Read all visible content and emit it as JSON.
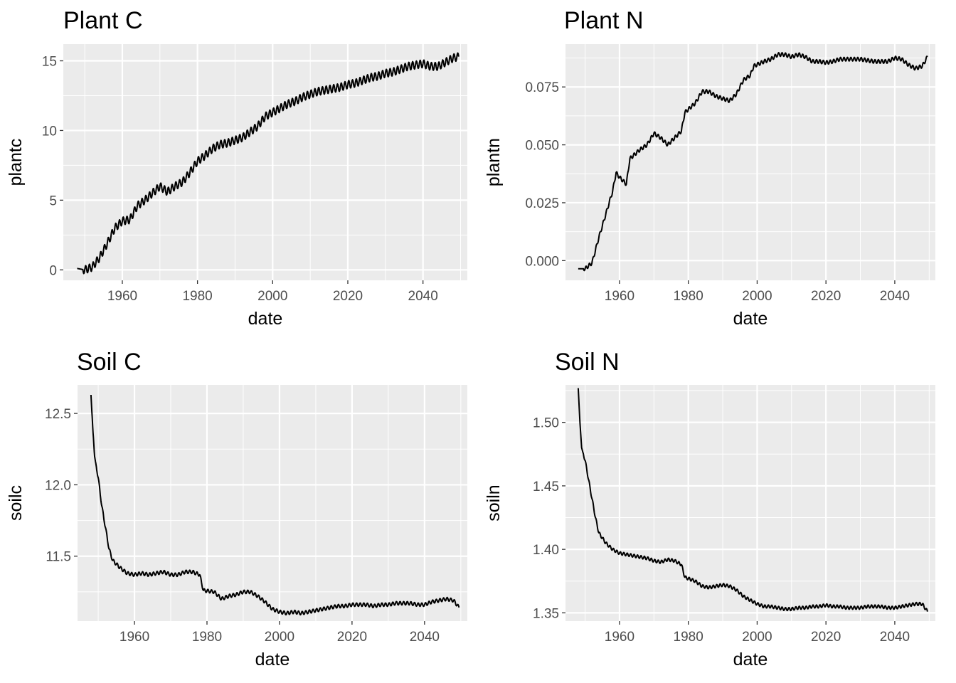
{
  "chart_data": [
    {
      "type": "line",
      "title": "Plant C",
      "xlabel": "date",
      "ylabel": "plantc",
      "xlim": [
        1944.3,
        2051.8
      ],
      "ylim": [
        -0.75,
        16.2
      ],
      "xticks": [
        1960,
        1980,
        2000,
        2020,
        2040
      ],
      "yticks": [
        0,
        5,
        10,
        15
      ],
      "ytick_labels": [
        "0",
        "5",
        "10",
        "15"
      ],
      "grid": true,
      "seasonal_amplitude": 0.28,
      "series": [
        {
          "values": [
            [
              1948,
              0.1
            ],
            [
              1950,
              0.0
            ],
            [
              1952,
              0.2
            ],
            [
              1954,
              0.9
            ],
            [
              1956,
              1.9
            ],
            [
              1958,
              3.0
            ],
            [
              1960,
              3.5
            ],
            [
              1962,
              3.6
            ],
            [
              1964,
              4.6
            ],
            [
              1966,
              5.0
            ],
            [
              1968,
              5.5
            ],
            [
              1970,
              6.0
            ],
            [
              1972,
              5.6
            ],
            [
              1974,
              6.0
            ],
            [
              1976,
              6.3
            ],
            [
              1978,
              7.0
            ],
            [
              1980,
              7.8
            ],
            [
              1982,
              8.2
            ],
            [
              1984,
              8.7
            ],
            [
              1986,
              9.0
            ],
            [
              1988,
              9.1
            ],
            [
              1990,
              9.3
            ],
            [
              1992,
              9.5
            ],
            [
              1994,
              9.9
            ],
            [
              1996,
              10.3
            ],
            [
              1998,
              11.0
            ],
            [
              2000,
              11.3
            ],
            [
              2002,
              11.6
            ],
            [
              2004,
              11.9
            ],
            [
              2006,
              12.1
            ],
            [
              2008,
              12.4
            ],
            [
              2010,
              12.6
            ],
            [
              2012,
              12.8
            ],
            [
              2014,
              12.9
            ],
            [
              2016,
              13.0
            ],
            [
              2018,
              13.1
            ],
            [
              2020,
              13.3
            ],
            [
              2022,
              13.4
            ],
            [
              2024,
              13.6
            ],
            [
              2026,
              13.8
            ],
            [
              2028,
              13.9
            ],
            [
              2030,
              14.1
            ],
            [
              2032,
              14.2
            ],
            [
              2034,
              14.4
            ],
            [
              2036,
              14.6
            ],
            [
              2038,
              14.7
            ],
            [
              2040,
              14.8
            ],
            [
              2042,
              14.6
            ],
            [
              2044,
              14.6
            ],
            [
              2046,
              14.9
            ],
            [
              2048,
              15.2
            ],
            [
              2049.5,
              15.3
            ]
          ]
        }
      ]
    },
    {
      "type": "line",
      "title": "Plant N",
      "xlabel": "date",
      "ylabel": "plantn",
      "xlim": [
        1944.3,
        2051.8
      ],
      "ylim": [
        -0.0085,
        0.0935
      ],
      "xticks": [
        1960,
        1980,
        2000,
        2020,
        2040
      ],
      "yticks": [
        0,
        0.025,
        0.05,
        0.075
      ],
      "ytick_labels": [
        "0.000",
        "0.025",
        "0.050",
        "0.075"
      ],
      "grid": true,
      "seasonal_amplitude": 0.0008,
      "series": [
        {
          "values": [
            [
              1948,
              -0.0035
            ],
            [
              1950,
              -0.0035
            ],
            [
              1952,
              -0.001
            ],
            [
              1954,
              0.01
            ],
            [
              1956,
              0.02
            ],
            [
              1958,
              0.03
            ],
            [
              1959,
              0.038
            ],
            [
              1960,
              0.036
            ],
            [
              1962,
              0.033
            ],
            [
              1963,
              0.044
            ],
            [
              1966,
              0.048
            ],
            [
              1968,
              0.05
            ],
            [
              1970,
              0.055
            ],
            [
              1972,
              0.053
            ],
            [
              1974,
              0.05
            ],
            [
              1976,
              0.053
            ],
            [
              1978,
              0.056
            ],
            [
              1979,
              0.064
            ],
            [
              1982,
              0.068
            ],
            [
              1984,
              0.073
            ],
            [
              1986,
              0.073
            ],
            [
              1988,
              0.071
            ],
            [
              1990,
              0.07
            ],
            [
              1992,
              0.069
            ],
            [
              1994,
              0.072
            ],
            [
              1996,
              0.078
            ],
            [
              1998,
              0.08
            ],
            [
              1999,
              0.084
            ],
            [
              2002,
              0.086
            ],
            [
              2004,
              0.087
            ],
            [
              2006,
              0.089
            ],
            [
              2008,
              0.089
            ],
            [
              2010,
              0.088
            ],
            [
              2012,
              0.089
            ],
            [
              2014,
              0.088
            ],
            [
              2016,
              0.086
            ],
            [
              2018,
              0.086
            ],
            [
              2020,
              0.0855
            ],
            [
              2022,
              0.086
            ],
            [
              2024,
              0.087
            ],
            [
              2026,
              0.087
            ],
            [
              2028,
              0.087
            ],
            [
              2030,
              0.087
            ],
            [
              2032,
              0.0865
            ],
            [
              2034,
              0.086
            ],
            [
              2036,
              0.086
            ],
            [
              2038,
              0.086
            ],
            [
              2040,
              0.0875
            ],
            [
              2042,
              0.087
            ],
            [
              2044,
              0.0845
            ],
            [
              2046,
              0.083
            ],
            [
              2048,
              0.084
            ],
            [
              2049.5,
              0.088
            ]
          ]
        }
      ]
    },
    {
      "type": "line",
      "title": "Soil C",
      "xlabel": "date",
      "ylabel": "soilc",
      "xlim": [
        1944.3,
        2051.8
      ],
      "ylim": [
        11.045,
        12.7
      ],
      "xticks": [
        1960,
        1980,
        2000,
        2020,
        2040
      ],
      "yticks": [
        11.5,
        12.0,
        12.5
      ],
      "ytick_labels": [
        "11.5",
        "12.0",
        "12.5"
      ],
      "grid": true,
      "seasonal_amplitude": 0.012,
      "series": [
        {
          "values": [
            [
              1948,
              12.63
            ],
            [
              1948.5,
              12.4
            ],
            [
              1949,
              12.2
            ],
            [
              1950,
              12.05
            ],
            [
              1951,
              11.85
            ],
            [
              1952,
              11.7
            ],
            [
              1953,
              11.55
            ],
            [
              1954,
              11.47
            ],
            [
              1956,
              11.42
            ],
            [
              1958,
              11.38
            ],
            [
              1960,
              11.37
            ],
            [
              1962,
              11.38
            ],
            [
              1964,
              11.37
            ],
            [
              1966,
              11.38
            ],
            [
              1968,
              11.39
            ],
            [
              1970,
              11.37
            ],
            [
              1972,
              11.37
            ],
            [
              1974,
              11.39
            ],
            [
              1976,
              11.39
            ],
            [
              1978,
              11.37
            ],
            [
              1979,
              11.26
            ],
            [
              1982,
              11.25
            ],
            [
              1984,
              11.2
            ],
            [
              1986,
              11.22
            ],
            [
              1988,
              11.23
            ],
            [
              1990,
              11.25
            ],
            [
              1992,
              11.25
            ],
            [
              1994,
              11.22
            ],
            [
              1996,
              11.18
            ],
            [
              1998,
              11.13
            ],
            [
              2000,
              11.11
            ],
            [
              2002,
              11.1
            ],
            [
              2004,
              11.11
            ],
            [
              2006,
              11.1
            ],
            [
              2008,
              11.11
            ],
            [
              2010,
              11.12
            ],
            [
              2012,
              11.13
            ],
            [
              2014,
              11.14
            ],
            [
              2016,
              11.15
            ],
            [
              2018,
              11.15
            ],
            [
              2020,
              11.16
            ],
            [
              2022,
              11.16
            ],
            [
              2024,
              11.16
            ],
            [
              2026,
              11.15
            ],
            [
              2028,
              11.16
            ],
            [
              2030,
              11.16
            ],
            [
              2032,
              11.17
            ],
            [
              2034,
              11.17
            ],
            [
              2036,
              11.17
            ],
            [
              2038,
              11.16
            ],
            [
              2040,
              11.16
            ],
            [
              2042,
              11.18
            ],
            [
              2044,
              11.19
            ],
            [
              2046,
              11.2
            ],
            [
              2048,
              11.19
            ],
            [
              2049.5,
              11.14
            ]
          ]
        }
      ]
    },
    {
      "type": "line",
      "title": "Soil N",
      "xlabel": "date",
      "ylabel": "soiln",
      "xlim": [
        1944.3,
        2051.8
      ],
      "ylim": [
        1.3435,
        1.5295
      ],
      "xticks": [
        1960,
        1980,
        2000,
        2020,
        2040
      ],
      "yticks": [
        1.35,
        1.4,
        1.45,
        1.5
      ],
      "ytick_labels": [
        "1.35",
        "1.40",
        "1.45",
        "1.50"
      ],
      "grid": true,
      "seasonal_amplitude": 0.0012,
      "series": [
        {
          "values": [
            [
              1948,
              1.527
            ],
            [
              1948.5,
              1.5
            ],
            [
              1949,
              1.48
            ],
            [
              1950,
              1.47
            ],
            [
              1951,
              1.455
            ],
            [
              1952,
              1.44
            ],
            [
              1953,
              1.425
            ],
            [
              1954,
              1.413
            ],
            [
              1956,
              1.405
            ],
            [
              1958,
              1.4
            ],
            [
              1960,
              1.397
            ],
            [
              1962,
              1.396
            ],
            [
              1964,
              1.395
            ],
            [
              1966,
              1.394
            ],
            [
              1968,
              1.393
            ],
            [
              1970,
              1.391
            ],
            [
              1972,
              1.39
            ],
            [
              1974,
              1.392
            ],
            [
              1976,
              1.391
            ],
            [
              1978,
              1.388
            ],
            [
              1979,
              1.378
            ],
            [
              1982,
              1.375
            ],
            [
              1984,
              1.371
            ],
            [
              1986,
              1.37
            ],
            [
              1988,
              1.371
            ],
            [
              1990,
              1.372
            ],
            [
              1992,
              1.371
            ],
            [
              1994,
              1.368
            ],
            [
              1996,
              1.363
            ],
            [
              1998,
              1.36
            ],
            [
              2000,
              1.357
            ],
            [
              2002,
              1.355
            ],
            [
              2004,
              1.355
            ],
            [
              2006,
              1.354
            ],
            [
              2008,
              1.353
            ],
            [
              2010,
              1.353
            ],
            [
              2012,
              1.354
            ],
            [
              2014,
              1.354
            ],
            [
              2016,
              1.355
            ],
            [
              2018,
              1.355
            ],
            [
              2020,
              1.356
            ],
            [
              2022,
              1.355
            ],
            [
              2024,
              1.355
            ],
            [
              2026,
              1.354
            ],
            [
              2028,
              1.354
            ],
            [
              2030,
              1.354
            ],
            [
              2032,
              1.355
            ],
            [
              2034,
              1.355
            ],
            [
              2036,
              1.355
            ],
            [
              2038,
              1.354
            ],
            [
              2040,
              1.354
            ],
            [
              2042,
              1.355
            ],
            [
              2044,
              1.356
            ],
            [
              2046,
              1.357
            ],
            [
              2048,
              1.357
            ],
            [
              2049.5,
              1.351
            ]
          ]
        }
      ]
    }
  ]
}
